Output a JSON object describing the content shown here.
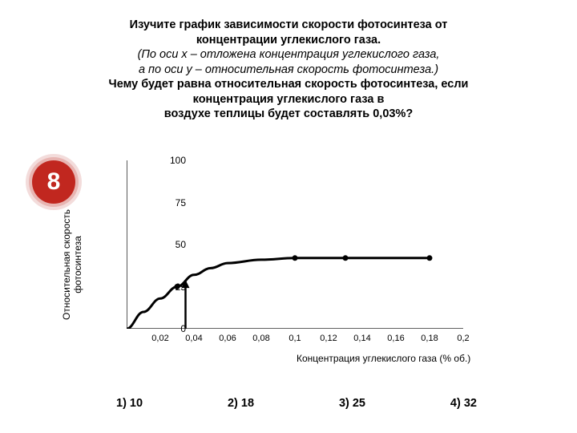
{
  "title": {
    "line1": "Изучите график зависимости скорости фотосинтеза от",
    "line2": "концентрации углекислого газа.",
    "line3_italic": "(По оси х – отложена концентрация углекислого газа,",
    "line4_italic": "а по оси у – относительная скорость фотосинтеза.)",
    "line5": "Чему будет равна относительная скорость фотосинтеза, если",
    "line6": "концентрация углекислого газа в",
    "line7": "воздухе теплицы будет составлять 0,03%?"
  },
  "badge": "8",
  "chart": {
    "type": "line",
    "background_color": "#ffffff",
    "axis_color": "#000000",
    "tick_color": "#000000",
    "curve_color": "#000000",
    "curve_width": 3,
    "marker_color": "#000000",
    "marker_radius": 3.5,
    "ylabel": "Относительная скорость\nфотосинтеза",
    "xlabel": "Концентрация углекислого газа (% об.)",
    "xlim": [
      0,
      0.2
    ],
    "ylim": [
      0,
      100
    ],
    "yticks": [
      0,
      25,
      50,
      75,
      100
    ],
    "xticks": [
      0.02,
      0.04,
      0.06,
      0.08,
      0.1,
      0.12,
      0.14,
      0.16,
      0.18,
      0.2
    ],
    "xtick_labels": [
      "0,02",
      "0,04",
      "0,06",
      "0,08",
      "0,1",
      "0,12",
      "0,14",
      "0,16",
      "0,18",
      "0,2"
    ],
    "curve_points": [
      {
        "x": 0.0,
        "y": 0
      },
      {
        "x": 0.01,
        "y": 10
      },
      {
        "x": 0.02,
        "y": 18
      },
      {
        "x": 0.03,
        "y": 25
      },
      {
        "x": 0.04,
        "y": 32
      },
      {
        "x": 0.05,
        "y": 36
      },
      {
        "x": 0.06,
        "y": 39
      },
      {
        "x": 0.08,
        "y": 41
      },
      {
        "x": 0.1,
        "y": 42
      },
      {
        "x": 0.13,
        "y": 42
      },
      {
        "x": 0.18,
        "y": 42
      }
    ],
    "markers": [
      {
        "x": 0.03,
        "y": 25
      },
      {
        "x": 0.1,
        "y": 42
      },
      {
        "x": 0.13,
        "y": 42
      },
      {
        "x": 0.18,
        "y": 42
      }
    ],
    "arrow": {
      "x": 0.035,
      "y_from": 0,
      "y_to": 29,
      "color": "#000000",
      "width": 2.5
    }
  },
  "answers": [
    "1) 10",
    "2) 18",
    "3) 25",
    "4) 32"
  ]
}
